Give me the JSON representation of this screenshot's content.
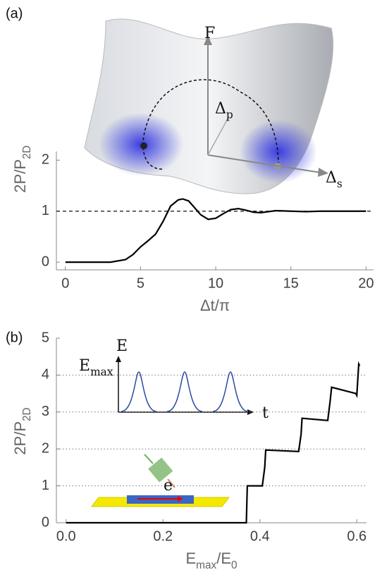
{
  "chart_data": [
    {
      "type": "line",
      "panel_label": "(a)",
      "xlabel": {
        "text": "Δt/π"
      },
      "ylabel": {
        "text": "2P/P",
        "sub": "2D"
      },
      "x": [
        0,
        3,
        4,
        4.5,
        5,
        5.5,
        6,
        6.5,
        7,
        7.5,
        7.8,
        8.2,
        8.5,
        9,
        9.5,
        10,
        10.5,
        11,
        11.5,
        12,
        12.5,
        13,
        13.5,
        14,
        15,
        16,
        17,
        18,
        19,
        20
      ],
      "series": [
        {
          "name": "2P/P2D",
          "color": "#000000",
          "values": [
            0,
            0.0,
            0.05,
            0.15,
            0.3,
            0.42,
            0.55,
            0.8,
            1.1,
            1.22,
            1.24,
            1.2,
            1.1,
            0.93,
            0.84,
            0.86,
            0.95,
            1.03,
            1.05,
            1.02,
            0.98,
            0.97,
            0.99,
            1.01,
            1.0,
            0.99,
            1.0,
            1.0,
            1.0,
            1.0
          ]
        }
      ],
      "xlim": [
        -0.6,
        20.5
      ],
      "ylim": [
        -0.15,
        2.17
      ],
      "xticks": [
        0,
        5,
        10,
        15,
        20
      ],
      "yticks": [
        0,
        1,
        2
      ],
      "reference_line": 1,
      "grid": false,
      "annotations": [
        {
          "text": "F"
        },
        {
          "text": "Δ",
          "sub": "p"
        },
        {
          "text": "Δ",
          "sub": "s"
        }
      ]
    },
    {
      "type": "line",
      "panel_label": "(b)",
      "xlabel": {
        "text": "E",
        "sub": "max",
        "rest": "/E",
        "sub2": "0"
      },
      "ylabel": {
        "text": "2P/P",
        "sub": "2D"
      },
      "x": [
        0,
        0.372,
        0.374,
        0.405,
        0.41,
        0.412,
        0.48,
        0.485,
        0.487,
        0.54,
        0.545,
        0.548,
        0.598,
        0.6,
        0.604,
        0.606
      ],
      "series": [
        {
          "name": "2P/P2D",
          "color": "#000000",
          "values": [
            0,
            0,
            1.0,
            1.0,
            1.5,
            1.97,
            1.93,
            2.4,
            2.83,
            2.77,
            3.3,
            3.67,
            3.5,
            3.45,
            4.3,
            4.25
          ]
        }
      ],
      "xlim": [
        -0.02,
        0.62
      ],
      "ylim": [
        0,
        5
      ],
      "xticks": [
        {
          "value": 0,
          "label": "0.0"
        },
        0.2,
        0.4,
        0.6
      ],
      "yticks": [
        0,
        1,
        2,
        3,
        4,
        5
      ],
      "grid": true,
      "annotations": [
        {
          "text": "E"
        },
        {
          "text": "E",
          "sub": "max"
        },
        {
          "text": "t"
        },
        {
          "text": "e"
        }
      ]
    }
  ]
}
